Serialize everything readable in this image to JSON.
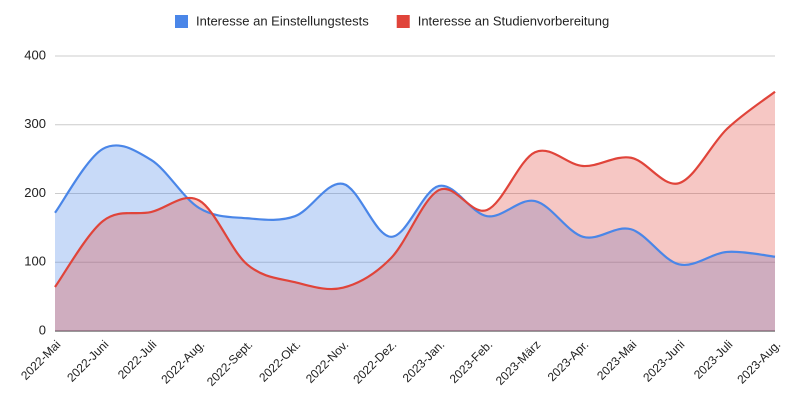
{
  "chart_data": {
    "type": "area",
    "categories": [
      "2022-Mai",
      "2022-Juni",
      "2022-Juli",
      "2022-Aug.",
      "2022-Sept.",
      "2022-Okt.",
      "2022-Nov.",
      "2022-Dez.",
      "2023-Jan.",
      "2023-Feb.",
      "2023-März",
      "2023-Apr.",
      "2023-Mai",
      "2023-Juni",
      "2023-Juli",
      "2023-Aug."
    ],
    "series": [
      {
        "name": "Interesse an Einstellungstests",
        "color": "#4a86e8",
        "values": [
          172,
          265,
          249,
          179,
          164,
          167,
          214,
          137,
          211,
          167,
          189,
          137,
          148,
          97,
          115,
          108
        ]
      },
      {
        "name": "Interesse an Studienvorbereitung",
        "color": "#e0443a",
        "values": [
          64,
          160,
          173,
          190,
          97,
          71,
          63,
          106,
          205,
          176,
          260,
          240,
          252,
          215,
          294,
          348
        ]
      }
    ],
    "ylim": [
      0,
      400
    ],
    "yticks": [
      0,
      100,
      200,
      300,
      400
    ],
    "grid": true,
    "legend": "top"
  }
}
